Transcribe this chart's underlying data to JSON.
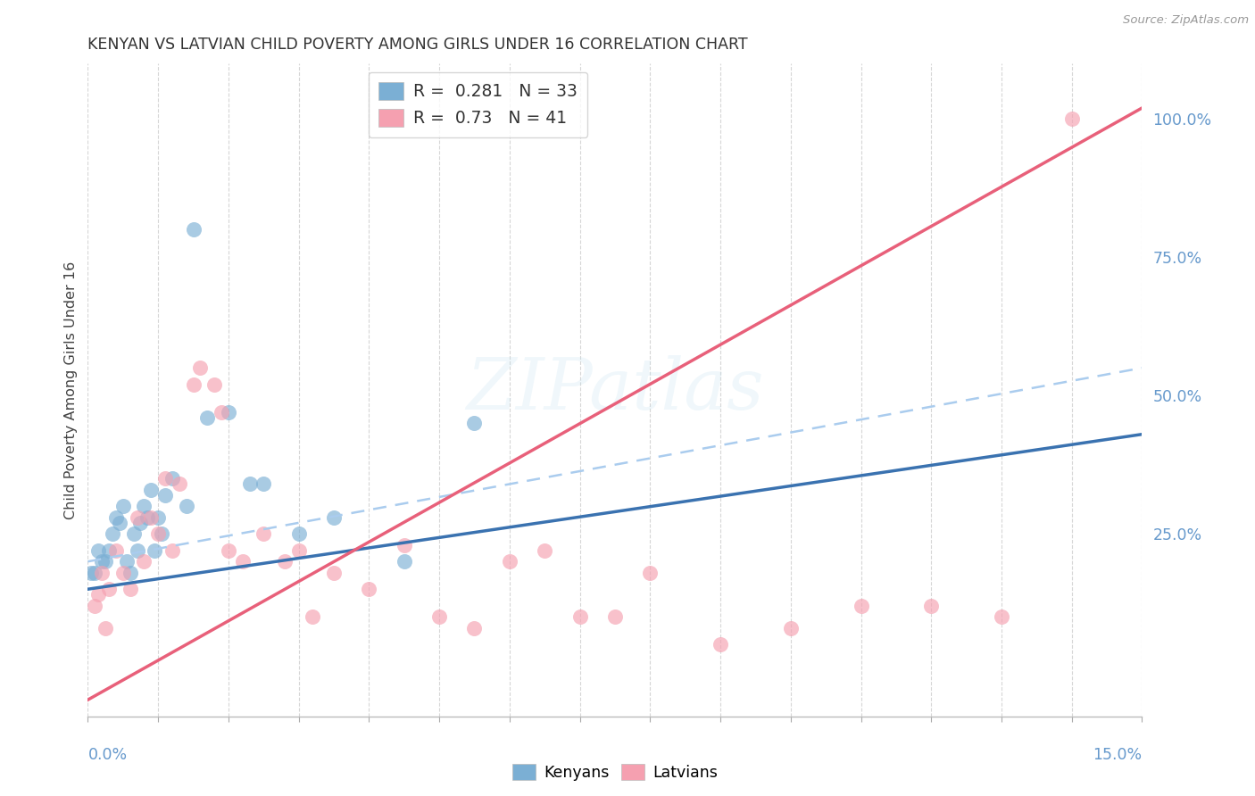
{
  "title": "KENYAN VS LATVIAN CHILD POVERTY AMONG GIRLS UNDER 16 CORRELATION CHART",
  "source": "Source: ZipAtlas.com",
  "ylabel": "Child Poverty Among Girls Under 16",
  "watermark": "ZIPatlas",
  "kenyan_R": 0.281,
  "kenyan_N": 33,
  "latvian_R": 0.73,
  "latvian_N": 41,
  "kenyan_color": "#7BAFD4",
  "latvian_color": "#F5A0B0",
  "kenyan_line_color": "#3A72B0",
  "latvian_line_color": "#E8607A",
  "dashed_line_color": "#AACCEE",
  "axis_label_color": "#6699CC",
  "title_color": "#333333",
  "kenyan_x": [
    0.1,
    0.2,
    0.3,
    0.4,
    0.5,
    0.6,
    0.7,
    0.8,
    0.9,
    1.0,
    1.1,
    1.2,
    1.4,
    1.5,
    1.7,
    2.0,
    2.3,
    2.5,
    3.0,
    3.5,
    4.5,
    5.5,
    0.05,
    0.15,
    0.25,
    0.35,
    0.45,
    0.55,
    0.65,
    0.75,
    0.85,
    0.95,
    1.05
  ],
  "kenyan_y": [
    18,
    20,
    22,
    28,
    30,
    18,
    22,
    30,
    33,
    28,
    32,
    35,
    30,
    80,
    46,
    47,
    34,
    34,
    25,
    28,
    20,
    45,
    18,
    22,
    20,
    25,
    27,
    20,
    25,
    27,
    28,
    22,
    25
  ],
  "latvian_x": [
    0.2,
    0.4,
    0.6,
    0.8,
    1.0,
    1.2,
    1.5,
    1.8,
    2.0,
    2.5,
    3.0,
    3.5,
    4.0,
    5.0,
    6.0,
    7.0,
    8.0,
    9.0,
    10.0,
    11.0,
    12.0,
    13.0,
    14.0,
    0.1,
    0.3,
    0.5,
    0.7,
    0.9,
    1.1,
    1.3,
    1.6,
    1.9,
    2.2,
    2.8,
    3.2,
    4.5,
    5.5,
    6.5,
    7.5,
    0.15,
    0.25
  ],
  "latvian_y": [
    18,
    22,
    15,
    20,
    25,
    22,
    52,
    52,
    22,
    25,
    22,
    18,
    15,
    10,
    20,
    10,
    18,
    5,
    8,
    12,
    12,
    10,
    100,
    12,
    15,
    18,
    28,
    28,
    35,
    34,
    55,
    47,
    20,
    20,
    10,
    23,
    8,
    22,
    10,
    14,
    8
  ],
  "kenyan_trend": [
    15.0,
    43.0
  ],
  "latvian_trend": [
    -5.0,
    102.0
  ],
  "dashed_trend": [
    20.0,
    55.0
  ],
  "xmin": 0.0,
  "xmax": 15.0,
  "ymin": -8.0,
  "ymax": 110.0
}
